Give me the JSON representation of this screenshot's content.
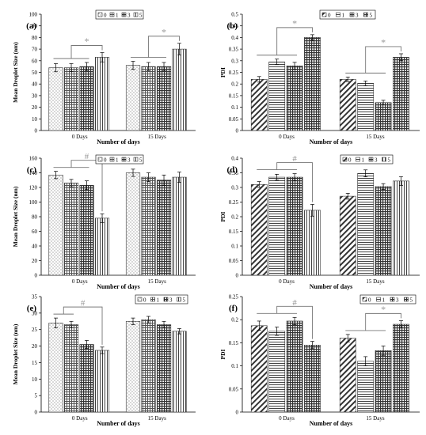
{
  "palette": {
    "axis": "#000000",
    "bar_stroke": "#333333",
    "sig_line": "#777777",
    "sig_mark": "#999999"
  },
  "legend_labels": [
    "0",
    "1",
    "3",
    "5"
  ],
  "chart_data": [
    {
      "panel": "(a)",
      "type": "bar",
      "ylabel": "Mean Droplet Size (nm)",
      "xlabel": "Number of days",
      "categories": [
        "0 Days",
        "15 Days"
      ],
      "ylim": [
        0,
        100
      ],
      "yticks": [
        "0",
        "10",
        "20",
        "30",
        "40",
        "50",
        "60",
        "70",
        "80",
        "90",
        "100"
      ],
      "legend_position": "top-right",
      "grid": false,
      "series": [
        {
          "name": "0",
          "values": [
            54,
            56
          ],
          "errors": [
            3.5,
            3.5
          ]
        },
        {
          "name": "1",
          "values": [
            54,
            55
          ],
          "errors": [
            3.5,
            3.5
          ]
        },
        {
          "name": "3",
          "values": [
            55,
            55
          ],
          "errors": [
            3.5,
            3.5
          ]
        },
        {
          "name": "5",
          "values": [
            63,
            70
          ],
          "errors": [
            4,
            5
          ]
        }
      ],
      "annotations": [
        {
          "text": "*",
          "group": 0,
          "from": [
            0,
            1,
            2
          ],
          "to": 3
        },
        {
          "text": "*",
          "group": 1,
          "from": [
            0,
            1,
            2
          ],
          "to": 3
        }
      ]
    },
    {
      "panel": "(b)",
      "type": "bar",
      "ylabel": "PDI",
      "xlabel": "Number of days",
      "categories": [
        "0 Days",
        "15 Days"
      ],
      "ylim": [
        0,
        0.5
      ],
      "yticks": [
        "0",
        "0.05",
        "0.1",
        "0.15",
        "0.2",
        "0.25",
        "0.3",
        "0.35",
        "0.4",
        "0.45",
        "0.5"
      ],
      "legend_position": "top-right",
      "grid": false,
      "series": [
        {
          "name": "0",
          "values": [
            0.22,
            0.22
          ],
          "errors": [
            0.012,
            0.01
          ]
        },
        {
          "name": "1",
          "values": [
            0.295,
            0.203
          ],
          "errors": [
            0.012,
            0.01
          ]
        },
        {
          "name": "3",
          "values": [
            0.278,
            0.12
          ],
          "errors": [
            0.015,
            0.01
          ]
        },
        {
          "name": "5",
          "values": [
            0.4,
            0.315
          ],
          "errors": [
            0.012,
            0.015
          ]
        }
      ],
      "annotations": [
        {
          "text": "*",
          "group": 0,
          "from": [
            0,
            1,
            2
          ],
          "to": 3
        },
        {
          "text": "*",
          "group": 1,
          "from": [
            0,
            1,
            2
          ],
          "to": 3
        }
      ]
    },
    {
      "panel": "(c)",
      "type": "bar",
      "ylabel": "Mean Droplet Size (nm)",
      "xlabel": "Number of days",
      "categories": [
        "0 Days",
        "15 Days"
      ],
      "ylim": [
        0,
        160
      ],
      "yticks": [
        "0",
        "20",
        "40",
        "60",
        "80",
        "100",
        "120",
        "140",
        "160"
      ],
      "legend_position": "top-right",
      "grid": false,
      "series": [
        {
          "name": "0",
          "values": [
            137,
            140
          ],
          "errors": [
            5,
            5
          ]
        },
        {
          "name": "1",
          "values": [
            126,
            134
          ],
          "errors": [
            5,
            6
          ]
        },
        {
          "name": "3",
          "values": [
            123,
            130
          ],
          "errors": [
            6,
            7
          ]
        },
        {
          "name": "5",
          "values": [
            78,
            134
          ],
          "errors": [
            6,
            7
          ]
        }
      ],
      "annotations": [
        {
          "text": "#",
          "group": 0,
          "from": [
            0,
            1,
            2
          ],
          "to": 3
        }
      ]
    },
    {
      "panel": "(d)",
      "type": "bar",
      "ylabel": "PDI",
      "xlabel": "Number of days",
      "categories": [
        "0 Days",
        "15 Days"
      ],
      "ylim": [
        0,
        0.4
      ],
      "yticks": [
        "0",
        "0.05",
        "0.1",
        "0.15",
        "0.2",
        "0.25",
        "0.3",
        "0.35",
        "0.4"
      ],
      "legend_position": "top-right",
      "grid": false,
      "series": [
        {
          "name": "0",
          "values": [
            0.31,
            0.27
          ],
          "errors": [
            0.01,
            0.01
          ]
        },
        {
          "name": "1",
          "values": [
            0.335,
            0.348
          ],
          "errors": [
            0.01,
            0.012
          ]
        },
        {
          "name": "3",
          "values": [
            0.335,
            0.303
          ],
          "errors": [
            0.012,
            0.01
          ]
        },
        {
          "name": "5",
          "values": [
            0.222,
            0.322
          ],
          "errors": [
            0.02,
            0.015
          ]
        }
      ],
      "annotations": [
        {
          "text": "#",
          "group": 0,
          "from": [
            0,
            1,
            2
          ],
          "to": 3
        }
      ]
    },
    {
      "panel": "(e)",
      "type": "bar",
      "ylabel": "Mean Droplet Size (nm)",
      "xlabel": "Number of days",
      "categories": [
        "0 Days",
        "15 Days"
      ],
      "ylim": [
        0,
        35
      ],
      "yticks": [
        "0",
        "5",
        "10",
        "15",
        "20",
        "25",
        "30",
        "35"
      ],
      "legend_position": "top-right",
      "grid": false,
      "series": [
        {
          "name": "0",
          "values": [
            27,
            27.5
          ],
          "errors": [
            1.5,
            1
          ]
        },
        {
          "name": "1",
          "values": [
            26.5,
            28
          ],
          "errors": [
            1,
            1
          ]
        },
        {
          "name": "3",
          "values": [
            20.5,
            26.5
          ],
          "errors": [
            1.2,
            1
          ]
        },
        {
          "name": "5",
          "values": [
            18.7,
            24.5
          ],
          "errors": [
            1,
            0.8
          ]
        }
      ],
      "annotations": [
        {
          "text": "#",
          "group": 0,
          "from": [
            0,
            1
          ],
          "to": 3
        }
      ]
    },
    {
      "panel": "(f)",
      "type": "bar",
      "ylabel": "PDI",
      "xlabel": "Number of days",
      "categories": [
        "0 Days",
        "15 Days"
      ],
      "ylim": [
        0,
        0.25
      ],
      "yticks": [
        "0",
        "0.05",
        "0.1",
        "0.15",
        "0.2",
        "0.25"
      ],
      "legend_position": "top-right",
      "grid": false,
      "series": [
        {
          "name": "0",
          "values": [
            0.187,
            0.16
          ],
          "errors": [
            0.01,
            0.008
          ]
        },
        {
          "name": "1",
          "values": [
            0.175,
            0.11
          ],
          "errors": [
            0.009,
            0.01
          ]
        },
        {
          "name": "3",
          "values": [
            0.197,
            0.133
          ],
          "errors": [
            0.008,
            0.01
          ]
        },
        {
          "name": "5",
          "values": [
            0.145,
            0.19
          ],
          "errors": [
            0.008,
            0.008
          ]
        }
      ],
      "annotations": [
        {
          "text": "#",
          "group": 0,
          "from": [
            0,
            1,
            2
          ],
          "to": 3
        },
        {
          "text": "*",
          "group": 1,
          "from": [
            0,
            1,
            2
          ],
          "to": 3
        }
      ]
    }
  ]
}
